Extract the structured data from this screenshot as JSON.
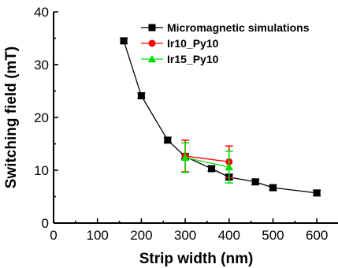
{
  "chart_data": {
    "type": "scatter",
    "xlabel": "Strip width (nm)",
    "ylabel": "Switching field (mT)",
    "xlim": [
      0,
      650
    ],
    "ylim": [
      0,
      40
    ],
    "x_ticks": [
      0,
      100,
      200,
      300,
      400,
      500,
      600
    ],
    "y_ticks": [
      0,
      10,
      20,
      30,
      40
    ],
    "legend_position": "top-right",
    "series": [
      {
        "name": "Micromagnetic simulations",
        "color": "#000000",
        "marker": "square",
        "line": true,
        "x": [
          160,
          200,
          260,
          300,
          360,
          400,
          460,
          500,
          600
        ],
        "y": [
          34.5,
          24.1,
          15.7,
          12.6,
          10.3,
          8.7,
          7.8,
          6.7,
          5.7
        ],
        "err": [
          0.5,
          0.5,
          0.5,
          0.5,
          0.5,
          0.5,
          0.5,
          0.5,
          0.5
        ]
      },
      {
        "name": "Ir10_Py10",
        "color": "#ff0000",
        "marker": "circle",
        "line": true,
        "x": [
          300,
          400
        ],
        "y": [
          12.7,
          11.6
        ],
        "err": [
          3.0,
          3.0
        ]
      },
      {
        "name": "Ir15_Py10",
        "color": "#00dd00",
        "marker": "triangle",
        "line": true,
        "x": [
          300,
          400
        ],
        "y": [
          12.4,
          10.6
        ],
        "err": [
          2.8,
          3.0
        ]
      }
    ]
  }
}
